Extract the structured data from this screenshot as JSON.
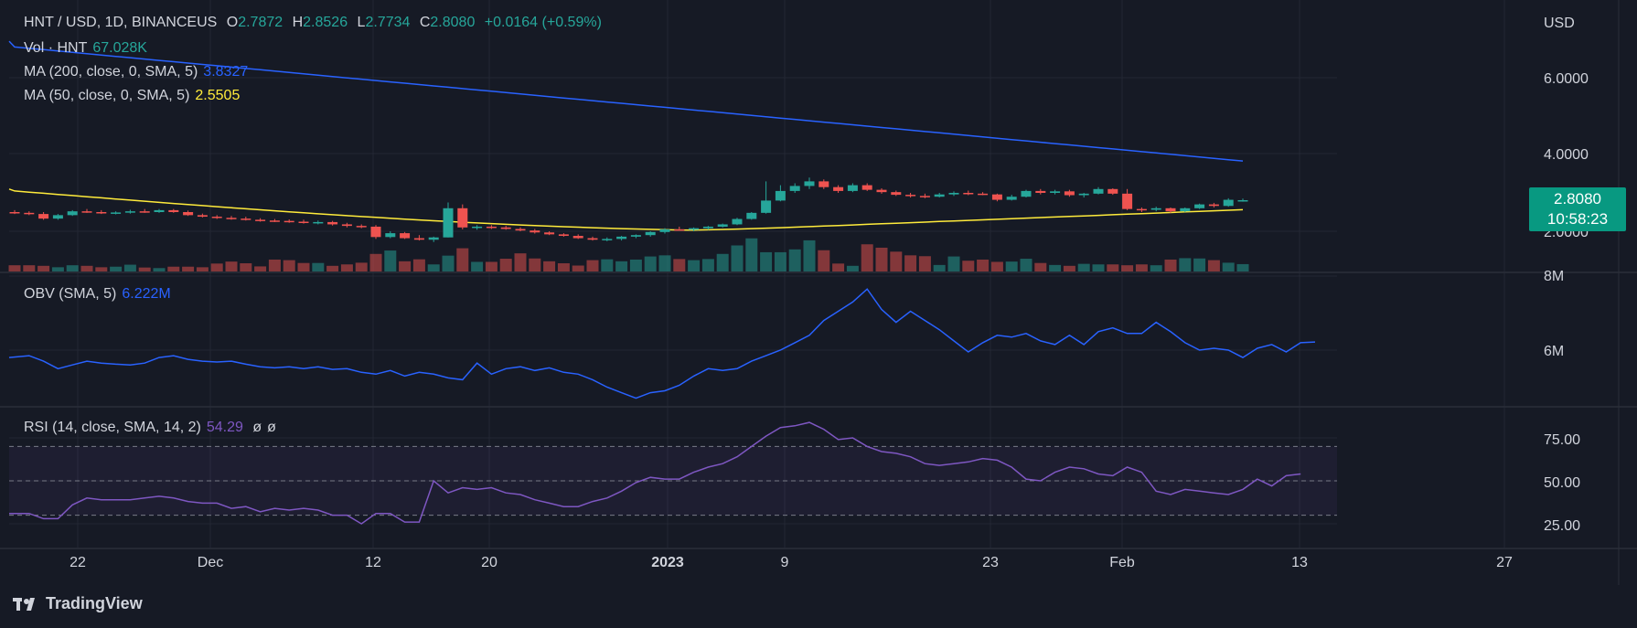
{
  "header": {
    "symbol": "HNT / USD, 1D, BINANCEUS",
    "open_label": "O",
    "open": "2.7872",
    "high_label": "H",
    "high": "2.8526",
    "low_label": "L",
    "low": "2.7734",
    "close_label": "C",
    "close": "2.8080",
    "change": "+0.0164 (+0.59%)"
  },
  "legends": {
    "vol_label": "Vol · HNT",
    "vol_value": "67.028K",
    "ma200_label": "MA (200, close, 0, SMA, 5)",
    "ma200_value": "3.8327",
    "ma50_label": "MA (50, close, 0, SMA, 5)",
    "ma50_value": "2.5505",
    "obv_label": "OBV (SMA, 5)",
    "obv_value": "6.222M",
    "rsi_label": "RSI (14, close, SMA, 14, 2)",
    "rsi_value": "54.29",
    "rsi_extra1": "ø",
    "rsi_extra2": "ø"
  },
  "price_tag": {
    "price": "2.8080",
    "countdown": "10:58:23"
  },
  "footer": {
    "brand": "TradingView"
  },
  "colors": {
    "up": "#26a69a",
    "down": "#ef5350",
    "ma200": "#2962ff",
    "ma50": "#ffeb3b",
    "obv": "#2962ff",
    "rsi": "#7e57c2",
    "background": "#161a25",
    "grid": "#232733"
  },
  "chart_data": [
    {
      "type": "candlestick",
      "title": "HNT / USD, 1D, BINANCEUS",
      "currency": "USD",
      "y_ticks": [
        "6.0000",
        "4.0000",
        "2.0000"
      ],
      "x_ticks": [
        "22",
        "Dec",
        "12",
        "20",
        "2023",
        "9",
        "23",
        "Feb",
        "13",
        "27"
      ],
      "ohlc": [
        [
          2.5,
          2.55,
          2.45,
          2.48
        ],
        [
          2.48,
          2.52,
          2.42,
          2.45
        ],
        [
          2.45,
          2.5,
          2.3,
          2.33
        ],
        [
          2.33,
          2.45,
          2.3,
          2.42
        ],
        [
          2.42,
          2.55,
          2.4,
          2.52
        ],
        [
          2.52,
          2.58,
          2.48,
          2.5
        ],
        [
          2.5,
          2.55,
          2.45,
          2.47
        ],
        [
          2.47,
          2.52,
          2.44,
          2.49
        ],
        [
          2.49,
          2.56,
          2.46,
          2.52
        ],
        [
          2.52,
          2.58,
          2.48,
          2.5
        ],
        [
          2.5,
          2.58,
          2.48,
          2.55
        ],
        [
          2.55,
          2.58,
          2.48,
          2.5
        ],
        [
          2.5,
          2.54,
          2.4,
          2.42
        ],
        [
          2.42,
          2.46,
          2.36,
          2.38
        ],
        [
          2.38,
          2.42,
          2.32,
          2.35
        ],
        [
          2.35,
          2.4,
          2.3,
          2.33
        ],
        [
          2.33,
          2.38,
          2.28,
          2.3
        ],
        [
          2.3,
          2.34,
          2.25,
          2.28
        ],
        [
          2.28,
          2.32,
          2.24,
          2.27
        ],
        [
          2.27,
          2.31,
          2.22,
          2.25
        ],
        [
          2.25,
          2.3,
          2.2,
          2.22
        ],
        [
          2.22,
          2.28,
          2.18,
          2.24
        ],
        [
          2.24,
          2.27,
          2.15,
          2.18
        ],
        [
          2.18,
          2.22,
          2.1,
          2.14
        ],
        [
          2.14,
          2.18,
          2.08,
          2.12
        ],
        [
          2.12,
          2.16,
          1.8,
          1.85
        ],
        [
          1.85,
          2.0,
          1.82,
          1.95
        ],
        [
          1.95,
          1.98,
          1.8,
          1.82
        ],
        [
          1.82,
          1.9,
          1.76,
          1.78
        ],
        [
          1.78,
          1.86,
          1.72,
          1.84
        ],
        [
          1.84,
          2.75,
          1.84,
          2.6
        ],
        [
          2.6,
          2.7,
          2.05,
          2.1
        ],
        [
          2.1,
          2.16,
          2.04,
          2.12
        ],
        [
          2.12,
          2.16,
          2.06,
          2.1
        ],
        [
          2.1,
          2.14,
          2.04,
          2.06
        ],
        [
          2.06,
          2.1,
          2.0,
          2.02
        ],
        [
          2.02,
          2.06,
          1.94,
          1.97
        ],
        [
          1.97,
          2.0,
          1.9,
          1.92
        ],
        [
          1.92,
          1.95,
          1.86,
          1.88
        ],
        [
          1.88,
          1.92,
          1.8,
          1.82
        ],
        [
          1.82,
          1.86,
          1.76,
          1.78
        ],
        [
          1.78,
          1.84,
          1.74,
          1.8
        ],
        [
          1.8,
          1.88,
          1.76,
          1.86
        ],
        [
          1.86,
          1.92,
          1.82,
          1.9
        ],
        [
          1.9,
          2.0,
          1.86,
          1.98
        ],
        [
          1.98,
          2.08,
          1.94,
          2.05
        ],
        [
          2.05,
          2.12,
          2.02,
          2.04
        ],
        [
          2.04,
          2.1,
          2.0,
          2.08
        ],
        [
          2.08,
          2.14,
          2.04,
          2.12
        ],
        [
          2.12,
          2.2,
          2.1,
          2.18
        ],
        [
          2.18,
          2.35,
          2.16,
          2.32
        ],
        [
          2.32,
          2.5,
          2.3,
          2.48
        ],
        [
          2.48,
          3.3,
          2.46,
          2.8
        ],
        [
          2.8,
          3.2,
          2.78,
          3.05
        ],
        [
          3.05,
          3.25,
          3.0,
          3.18
        ],
        [
          3.18,
          3.4,
          3.1,
          3.3
        ],
        [
          3.3,
          3.35,
          3.1,
          3.15
        ],
        [
          3.15,
          3.2,
          3.0,
          3.05
        ],
        [
          3.05,
          3.25,
          3.02,
          3.2
        ],
        [
          3.2,
          3.25,
          3.05,
          3.08
        ],
        [
          3.08,
          3.12,
          2.98,
          3.02
        ],
        [
          3.02,
          3.06,
          2.92,
          2.95
        ],
        [
          2.95,
          3.0,
          2.88,
          2.92
        ],
        [
          2.92,
          2.98,
          2.86,
          2.9
        ],
        [
          2.9,
          3.0,
          2.88,
          2.96
        ],
        [
          2.96,
          3.04,
          2.92,
          3.0
        ],
        [
          3.0,
          3.06,
          2.94,
          2.98
        ],
        [
          2.98,
          3.02,
          2.94,
          2.96
        ],
        [
          2.96,
          2.98,
          2.78,
          2.82
        ],
        [
          2.82,
          2.95,
          2.8,
          2.9
        ],
        [
          2.9,
          3.08,
          2.88,
          3.05
        ],
        [
          3.05,
          3.1,
          2.96,
          3.0
        ],
        [
          3.0,
          3.08,
          2.96,
          3.04
        ],
        [
          3.04,
          3.08,
          2.9,
          2.94
        ],
        [
          2.94,
          3.0,
          2.88,
          2.98
        ],
        [
          2.98,
          3.15,
          2.96,
          3.1
        ],
        [
          3.1,
          3.12,
          2.95,
          2.98
        ],
        [
          2.98,
          3.1,
          2.55,
          2.58
        ],
        [
          2.58,
          2.62,
          2.5,
          2.56
        ],
        [
          2.56,
          2.64,
          2.52,
          2.6
        ],
        [
          2.6,
          2.62,
          2.48,
          2.52
        ],
        [
          2.52,
          2.62,
          2.5,
          2.6
        ],
        [
          2.6,
          2.72,
          2.58,
          2.7
        ],
        [
          2.7,
          2.74,
          2.62,
          2.66
        ],
        [
          2.66,
          2.86,
          2.64,
          2.82
        ],
        [
          2.79,
          2.85,
          2.77,
          2.81
        ]
      ],
      "volume": [
        2.2,
        2.2,
        2.0,
        1.5,
        2.2,
        2.0,
        1.5,
        1.7,
        2.4,
        1.4,
        1.2,
        1.7,
        1.7,
        1.5,
        2.8,
        3.5,
        2.9,
        1.8,
        4.2,
        4.0,
        3.0,
        3.0,
        2.0,
        2.5,
        3.1,
        6.2,
        7.4,
        3.6,
        4.3,
        2.5,
        5.6,
        8.2,
        3.4,
        3.4,
        4.5,
        6.4,
        4.6,
        3.6,
        2.9,
        2.1,
        4.0,
        4.3,
        3.6,
        4.2,
        5.3,
        5.7,
        4.4,
        4.0,
        4.4,
        6.2,
        9.2,
        11.7,
        6.8,
        6.8,
        7.8,
        11.0,
        7.5,
        2.8,
        2.0,
        9.6,
        8.4,
        7.0,
        5.7,
        5.4,
        2.3,
        5.3,
        3.8,
        4.2,
        3.4,
        3.5,
        4.5,
        3.0,
        2.3,
        2.0,
        2.7,
        2.5,
        2.5,
        2.2,
        2.5,
        2.2,
        4.2,
        4.7,
        4.6,
        4.0,
        3.1,
        2.6
      ],
      "volume_label": "Vol · HNT"
    },
    {
      "type": "line",
      "name": "OBV (SMA, 5)",
      "y_ticks": [
        "8M",
        "6M"
      ],
      "values": [
        5.8,
        5.85,
        5.7,
        5.5,
        5.6,
        5.7,
        5.65,
        5.62,
        5.6,
        5.65,
        5.8,
        5.85,
        5.75,
        5.7,
        5.68,
        5.7,
        5.62,
        5.55,
        5.52,
        5.55,
        5.5,
        5.55,
        5.48,
        5.5,
        5.4,
        5.35,
        5.45,
        5.3,
        5.4,
        5.35,
        5.25,
        5.2,
        5.65,
        5.35,
        5.5,
        5.55,
        5.45,
        5.52,
        5.4,
        5.35,
        5.2,
        5.0,
        4.85,
        4.7,
        4.85,
        4.9,
        5.05,
        5.3,
        5.5,
        5.45,
        5.5,
        5.7,
        5.85,
        6.0,
        6.2,
        6.4,
        6.8,
        7.05,
        7.3,
        7.65,
        7.1,
        6.75,
        7.05,
        6.8,
        6.55,
        6.25,
        5.95,
        6.2,
        6.4,
        6.35,
        6.45,
        6.25,
        6.15,
        6.4,
        6.15,
        6.5,
        6.6,
        6.45,
        6.45,
        6.75,
        6.5,
        6.2,
        6.0,
        6.05,
        6.0,
        5.8,
        6.05,
        6.15,
        5.95,
        6.2,
        6.22
      ]
    },
    {
      "type": "line",
      "name": "RSI (14, close, SMA, 14, 2)",
      "y_ticks": [
        "75.00",
        "50.00",
        "25.00"
      ],
      "bands": [
        70,
        50,
        30
      ],
      "values": [
        31,
        31,
        28,
        28,
        36,
        40,
        39,
        39,
        39,
        40,
        41,
        40,
        38,
        37,
        37,
        34,
        35,
        32,
        34,
        33,
        34,
        33,
        30,
        30,
        25,
        31,
        31,
        26,
        26,
        50,
        43,
        46,
        45,
        46,
        43,
        42,
        39,
        37,
        35,
        35,
        38,
        40,
        44,
        49,
        52,
        51,
        51,
        55,
        58,
        60,
        64,
        70,
        76,
        81,
        82,
        84,
        80,
        74,
        75,
        70,
        67,
        66,
        64,
        60,
        59,
        60,
        61,
        63,
        62,
        58,
        51,
        50,
        55,
        58,
        57,
        54,
        53,
        58,
        55,
        44,
        42,
        45,
        44,
        43,
        42,
        45,
        51,
        47,
        53,
        54
      ]
    }
  ]
}
